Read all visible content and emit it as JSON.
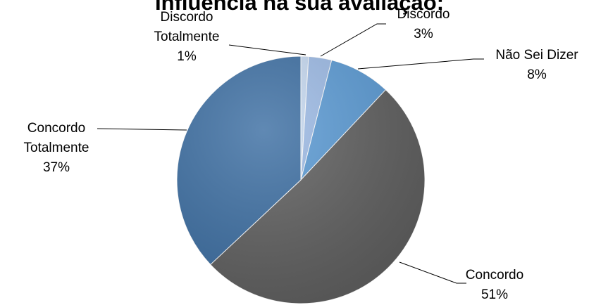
{
  "chart_data": {
    "type": "pie",
    "title": "Influência na sua avaliação:",
    "categories": [
      "Discordo Totalmente",
      "Discordo",
      "Não Sei Dizer",
      "Concordo",
      "Concordo Totalmente"
    ],
    "values": [
      1,
      3,
      8,
      51,
      37
    ],
    "value_labels": [
      "1%",
      "3%",
      "8%",
      "51%",
      "37%"
    ],
    "label_lines": [
      [
        "Discordo",
        "Totalmente"
      ],
      [
        "Discordo"
      ],
      [
        "Não Sei Dizer"
      ],
      [
        "Concordo"
      ],
      [
        "Concordo",
        "Totalmente"
      ]
    ],
    "colors": [
      "#c6d9f1",
      "#9dbbe6",
      "#5b9bd5",
      "#5f5f5f",
      "#3d6fa3"
    ],
    "legend": "none",
    "label_position": "outside-with-leader-lines"
  }
}
